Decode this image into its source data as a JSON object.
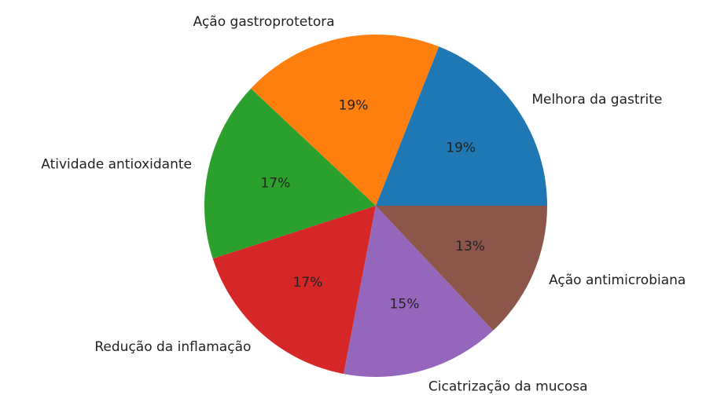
{
  "chart_data": {
    "type": "pie",
    "categories": [
      "Melhora da gastrite",
      "Ação gastroprotetora",
      "Atividade antioxidante",
      "Redução da inflamação",
      "Cicatrização da mucosa",
      "Ação antimicrobiana"
    ],
    "values": [
      19,
      19,
      17,
      17,
      15,
      13
    ],
    "value_labels": [
      "19%",
      "19%",
      "17%",
      "17%",
      "15%",
      "13%"
    ],
    "colors": [
      "#1f77b4",
      "#ff7f0e",
      "#2ca02c",
      "#d62728",
      "#9467bd",
      "#8c564b"
    ]
  }
}
